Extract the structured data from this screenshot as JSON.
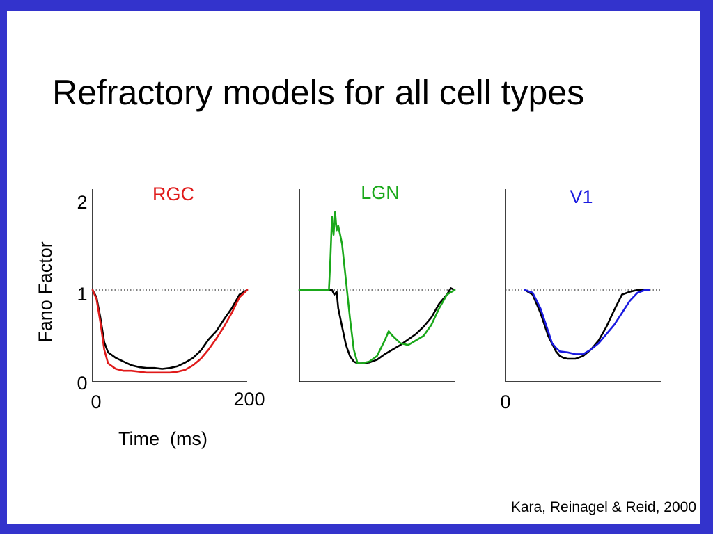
{
  "slide": {
    "title": "Refractory models for all cell types",
    "citation": "Kara, Reinagel & Reid, 2000",
    "border_color": "#3333cc"
  },
  "chart_data": [
    {
      "type": "line",
      "title": "RGC",
      "title_color": "#e01a1a",
      "ylabel": "Fano Factor",
      "xlabel": "Time  (ms)",
      "xlim": [
        0,
        200
      ],
      "ylim": [
        0,
        2
      ],
      "x_ticks": [
        "0",
        "200"
      ],
      "y_ticks": [
        "0",
        "1",
        "2"
      ],
      "reference_line": 1,
      "series": [
        {
          "color": "#000000",
          "x": [
            0,
            5,
            10,
            15,
            20,
            30,
            40,
            50,
            60,
            70,
            80,
            90,
            100,
            110,
            120,
            130,
            140,
            150,
            160,
            170,
            180,
            190,
            200
          ],
          "y": [
            1.0,
            0.92,
            0.7,
            0.43,
            0.32,
            0.26,
            0.22,
            0.18,
            0.16,
            0.15,
            0.15,
            0.14,
            0.15,
            0.17,
            0.21,
            0.26,
            0.34,
            0.46,
            0.55,
            0.68,
            0.8,
            0.95,
            1.0
          ]
        },
        {
          "color": "#e01a1a",
          "x": [
            0,
            5,
            10,
            15,
            20,
            30,
            40,
            50,
            60,
            70,
            80,
            90,
            100,
            110,
            120,
            130,
            140,
            150,
            160,
            170,
            180,
            190,
            200
          ],
          "y": [
            1.0,
            0.9,
            0.65,
            0.35,
            0.2,
            0.14,
            0.12,
            0.12,
            0.11,
            0.1,
            0.1,
            0.1,
            0.1,
            0.11,
            0.13,
            0.18,
            0.25,
            0.35,
            0.47,
            0.6,
            0.75,
            0.92,
            1.0
          ]
        }
      ]
    },
    {
      "type": "line",
      "title": "LGN",
      "title_color": "#1aa81a",
      "xlim": [
        0,
        200
      ],
      "ylim": [
        0,
        2
      ],
      "reference_line": 1,
      "series": [
        {
          "color": "#000000",
          "x": [
            0,
            40,
            42,
            45,
            48,
            50,
            55,
            60,
            65,
            70,
            75,
            80,
            90,
            100,
            110,
            120,
            130,
            140,
            150,
            160,
            170,
            180,
            190,
            195,
            200
          ],
          "y": [
            1.0,
            1.0,
            1.0,
            0.95,
            0.98,
            0.8,
            0.6,
            0.4,
            0.28,
            0.22,
            0.2,
            0.2,
            0.21,
            0.24,
            0.3,
            0.35,
            0.4,
            0.46,
            0.52,
            0.6,
            0.7,
            0.85,
            0.95,
            1.02,
            1.0
          ]
        },
        {
          "color": "#1aa81a",
          "x": [
            0,
            35,
            38,
            40,
            42,
            44,
            46,
            48,
            50,
            55,
            60,
            65,
            70,
            75,
            80,
            90,
            100,
            110,
            115,
            120,
            130,
            140,
            150,
            160,
            170,
            180,
            190,
            200
          ],
          "y": [
            1.0,
            1.0,
            1.0,
            1.35,
            1.8,
            1.6,
            1.85,
            1.65,
            1.7,
            1.5,
            1.1,
            0.7,
            0.35,
            0.2,
            0.2,
            0.22,
            0.28,
            0.45,
            0.55,
            0.5,
            0.42,
            0.4,
            0.45,
            0.5,
            0.62,
            0.8,
            0.95,
            1.0
          ]
        }
      ]
    },
    {
      "type": "line",
      "title": "V1",
      "title_color": "#1a1ae0",
      "xlim": [
        0,
        200
      ],
      "ylim": [
        0,
        2
      ],
      "x_ticks": [
        "0"
      ],
      "reference_line": 1,
      "series": [
        {
          "color": "#000000",
          "x": [
            25,
            35,
            45,
            55,
            65,
            70,
            75,
            80,
            90,
            100,
            110,
            120,
            130,
            140,
            150,
            160,
            170,
            180,
            185
          ],
          "y": [
            1.0,
            0.95,
            0.75,
            0.5,
            0.33,
            0.28,
            0.26,
            0.25,
            0.25,
            0.28,
            0.35,
            0.45,
            0.6,
            0.78,
            0.95,
            0.98,
            1.0,
            1.0,
            1.0
          ]
        },
        {
          "color": "#1a1ae0",
          "x": [
            25,
            35,
            45,
            55,
            60,
            65,
            70,
            80,
            90,
            100,
            110,
            120,
            130,
            140,
            150,
            160,
            170,
            180,
            185
          ],
          "y": [
            1.0,
            0.97,
            0.8,
            0.55,
            0.42,
            0.37,
            0.33,
            0.32,
            0.3,
            0.3,
            0.35,
            0.42,
            0.52,
            0.62,
            0.75,
            0.88,
            0.97,
            1.0,
            1.0
          ]
        }
      ]
    }
  ]
}
